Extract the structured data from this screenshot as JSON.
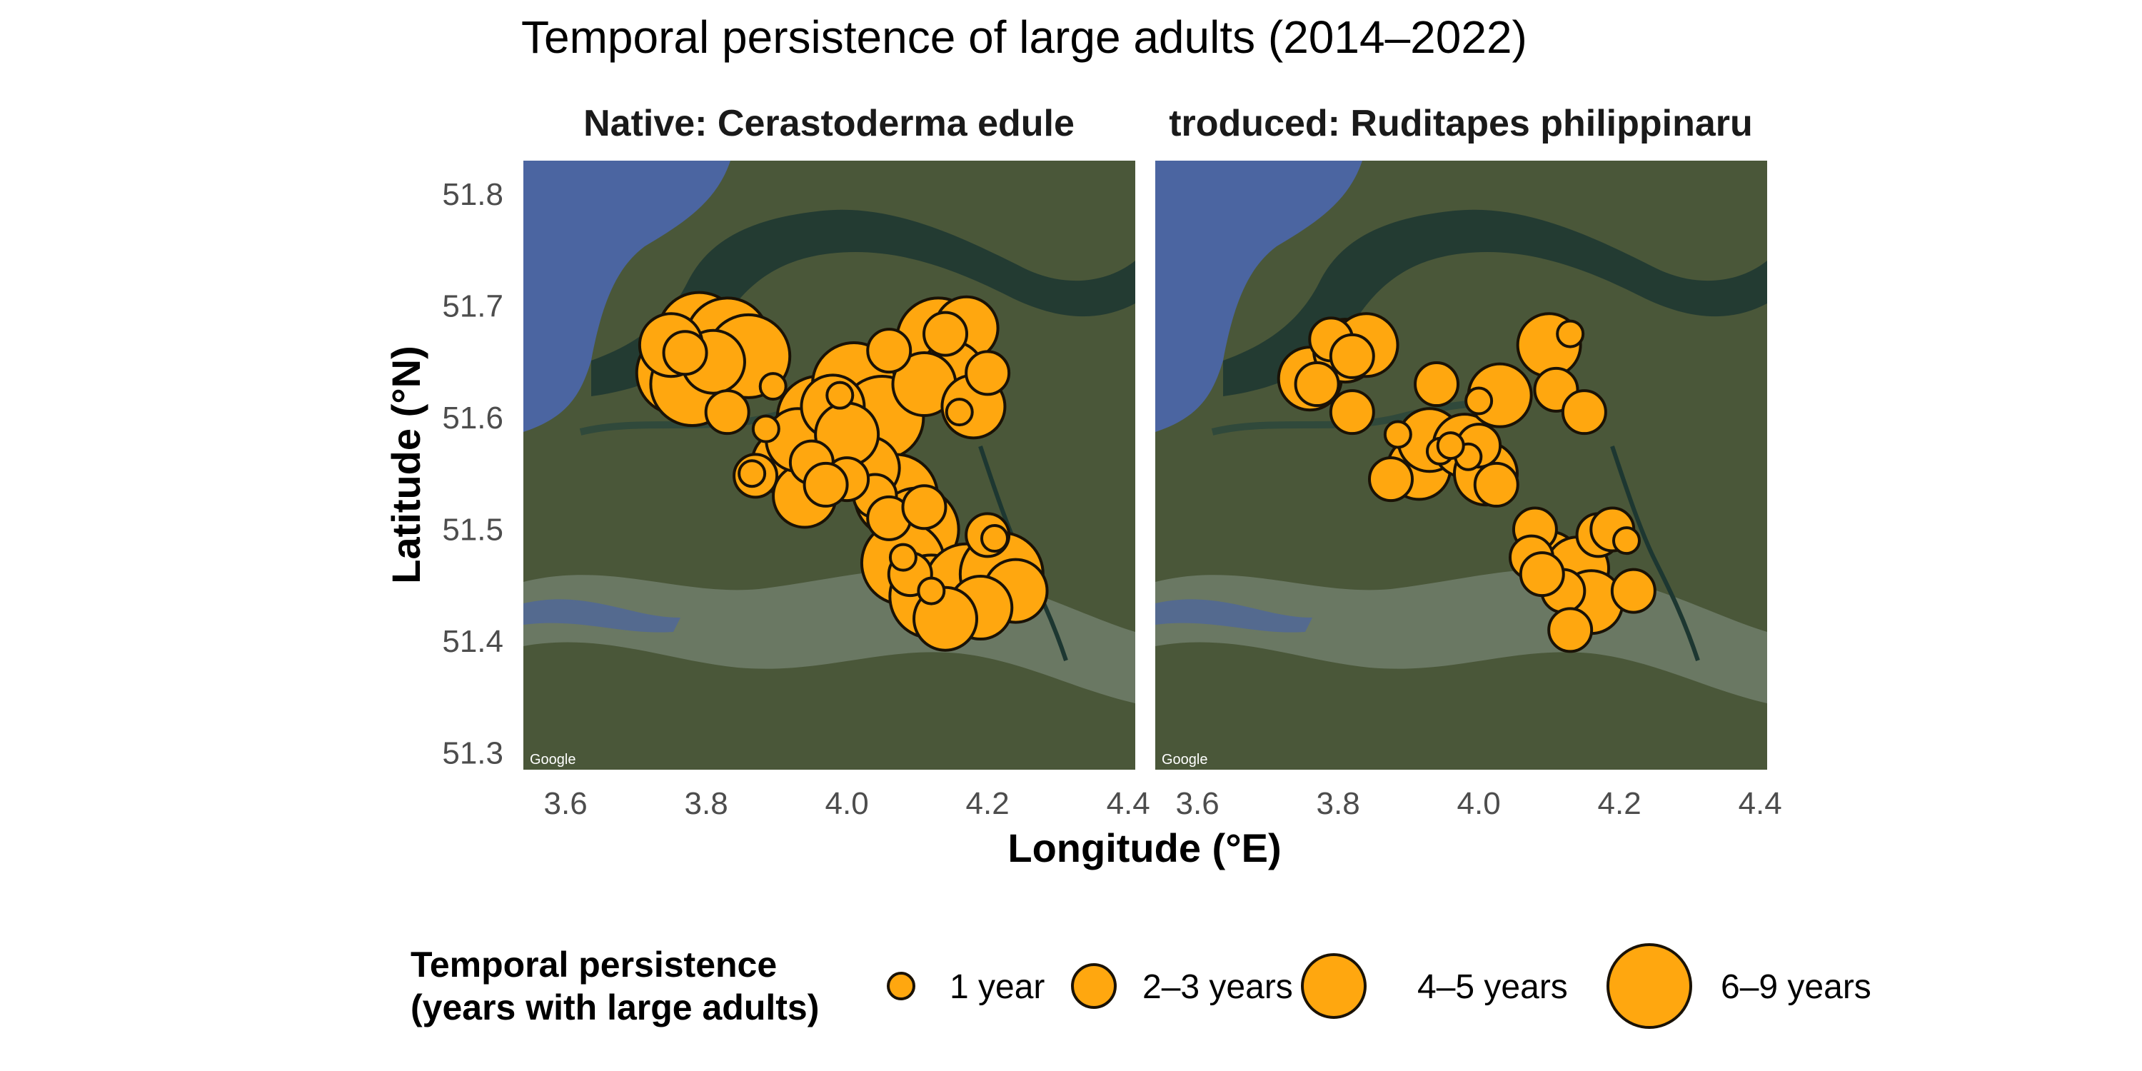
{
  "chart_data": {
    "type": "scatter",
    "title": "Temporal persistence of large adults (2014–2022)",
    "xlabel": "Longitude (°E)",
    "ylabel": "Latitude (°N)",
    "xlim": [
      3.54,
      4.41
    ],
    "ylim": [
      51.285,
      51.83
    ],
    "x_ticks": [
      "3.6",
      "3.8",
      "4.0",
      "4.2",
      "4.4"
    ],
    "y_ticks": [
      "51.3",
      "51.4",
      "51.5",
      "51.6",
      "51.7",
      "51.8"
    ],
    "basemap_credit": "Google",
    "colors": {
      "fill": "#FFA70F",
      "stroke": "#1a1206",
      "sea": "#4f6aa8",
      "land": "#4e5b3c",
      "water_dark": "#1f3a34",
      "estuary": "#6f7d68"
    },
    "legend": {
      "title_lines": [
        "Temporal persistence",
        "(years with large adults)"
      ],
      "position": "bottom",
      "items": [
        {
          "label": "1 year",
          "level": 1
        },
        {
          "label": "2–3 years",
          "level": 2
        },
        {
          "label": "4–5 years",
          "level": 3
        },
        {
          "label": "6–9 years",
          "level": 4
        }
      ]
    },
    "panels": [
      {
        "strip": "Native: Cerastoderma edule",
        "points": [
          {
            "lon": 3.79,
            "lat": 51.675,
            "level": 4
          },
          {
            "lon": 3.83,
            "lat": 51.67,
            "level": 4
          },
          {
            "lon": 3.76,
            "lat": 51.64,
            "level": 4
          },
          {
            "lon": 3.81,
            "lat": 51.65,
            "level": 3
          },
          {
            "lon": 3.78,
            "lat": 51.63,
            "level": 4
          },
          {
            "lon": 3.86,
            "lat": 51.655,
            "level": 4
          },
          {
            "lon": 3.75,
            "lat": 51.665,
            "level": 3
          },
          {
            "lon": 3.77,
            "lat": 51.658,
            "level": 2
          },
          {
            "lon": 3.83,
            "lat": 51.605,
            "level": 2
          },
          {
            "lon": 3.895,
            "lat": 51.628,
            "level": 1
          },
          {
            "lon": 3.885,
            "lat": 51.59,
            "level": 1
          },
          {
            "lon": 3.87,
            "lat": 51.548,
            "level": 2
          },
          {
            "lon": 3.865,
            "lat": 51.55,
            "level": 1
          },
          {
            "lon": 3.91,
            "lat": 51.56,
            "level": 3
          },
          {
            "lon": 3.94,
            "lat": 51.53,
            "level": 3
          },
          {
            "lon": 3.93,
            "lat": 51.58,
            "level": 3
          },
          {
            "lon": 3.96,
            "lat": 51.6,
            "level": 4
          },
          {
            "lon": 3.99,
            "lat": 51.575,
            "level": 4
          },
          {
            "lon": 3.98,
            "lat": 51.61,
            "level": 3
          },
          {
            "lon": 4.01,
            "lat": 51.63,
            "level": 4
          },
          {
            "lon": 4.05,
            "lat": 51.6,
            "level": 4
          },
          {
            "lon": 4.03,
            "lat": 51.555,
            "level": 3
          },
          {
            "lon": 4.0,
            "lat": 51.585,
            "level": 3
          },
          {
            "lon": 3.95,
            "lat": 51.56,
            "level": 2
          },
          {
            "lon": 3.99,
            "lat": 51.62,
            "level": 1
          },
          {
            "lon": 4.07,
            "lat": 51.53,
            "level": 4
          },
          {
            "lon": 4.1,
            "lat": 51.5,
            "level": 4
          },
          {
            "lon": 4.08,
            "lat": 51.47,
            "level": 4
          },
          {
            "lon": 4.12,
            "lat": 51.44,
            "level": 4
          },
          {
            "lon": 4.17,
            "lat": 51.45,
            "level": 4
          },
          {
            "lon": 4.22,
            "lat": 51.46,
            "level": 4
          },
          {
            "lon": 4.24,
            "lat": 51.445,
            "level": 3
          },
          {
            "lon": 4.19,
            "lat": 51.43,
            "level": 3
          },
          {
            "lon": 4.14,
            "lat": 51.42,
            "level": 3
          },
          {
            "lon": 4.09,
            "lat": 51.46,
            "level": 2
          },
          {
            "lon": 4.08,
            "lat": 51.475,
            "level": 1
          },
          {
            "lon": 4.12,
            "lat": 51.445,
            "level": 1
          },
          {
            "lon": 4.2,
            "lat": 51.495,
            "level": 2
          },
          {
            "lon": 4.21,
            "lat": 51.492,
            "level": 1
          },
          {
            "lon": 4.13,
            "lat": 51.67,
            "level": 4
          },
          {
            "lon": 4.17,
            "lat": 51.68,
            "level": 3
          },
          {
            "lon": 4.15,
            "lat": 51.64,
            "level": 3
          },
          {
            "lon": 4.11,
            "lat": 51.63,
            "level": 3
          },
          {
            "lon": 4.18,
            "lat": 51.61,
            "level": 3
          },
          {
            "lon": 4.2,
            "lat": 51.64,
            "level": 2
          },
          {
            "lon": 4.14,
            "lat": 51.675,
            "level": 2
          },
          {
            "lon": 4.16,
            "lat": 51.605,
            "level": 1
          },
          {
            "lon": 4.06,
            "lat": 51.66,
            "level": 2
          },
          {
            "lon": 4.04,
            "lat": 51.53,
            "level": 2
          },
          {
            "lon": 4.06,
            "lat": 51.51,
            "level": 2
          },
          {
            "lon": 4.11,
            "lat": 51.52,
            "level": 2
          },
          {
            "lon": 4.0,
            "lat": 51.545,
            "level": 2
          },
          {
            "lon": 3.97,
            "lat": 51.54,
            "level": 2
          }
        ]
      },
      {
        "strip": "troduced: Ruditapes philippinaru",
        "points": [
          {
            "lon": 3.76,
            "lat": 51.635,
            "level": 3
          },
          {
            "lon": 3.77,
            "lat": 51.63,
            "level": 2
          },
          {
            "lon": 3.79,
            "lat": 51.67,
            "level": 2
          },
          {
            "lon": 3.81,
            "lat": 51.66,
            "level": 3
          },
          {
            "lon": 3.84,
            "lat": 51.665,
            "level": 3
          },
          {
            "lon": 3.82,
            "lat": 51.655,
            "level": 2
          },
          {
            "lon": 3.82,
            "lat": 51.605,
            "level": 2
          },
          {
            "lon": 3.885,
            "lat": 51.585,
            "level": 1
          },
          {
            "lon": 3.875,
            "lat": 51.545,
            "level": 2
          },
          {
            "lon": 3.915,
            "lat": 51.555,
            "level": 3
          },
          {
            "lon": 3.93,
            "lat": 51.58,
            "level": 3
          },
          {
            "lon": 3.94,
            "lat": 51.63,
            "level": 2
          },
          {
            "lon": 3.98,
            "lat": 51.575,
            "level": 3
          },
          {
            "lon": 4.01,
            "lat": 51.55,
            "level": 3
          },
          {
            "lon": 4.0,
            "lat": 51.575,
            "level": 2
          },
          {
            "lon": 3.985,
            "lat": 51.565,
            "level": 1
          },
          {
            "lon": 4.025,
            "lat": 51.54,
            "level": 2
          },
          {
            "lon": 3.945,
            "lat": 51.57,
            "level": 1
          },
          {
            "lon": 3.96,
            "lat": 51.575,
            "level": 1
          },
          {
            "lon": 4.03,
            "lat": 51.62,
            "level": 3
          },
          {
            "lon": 4.0,
            "lat": 51.615,
            "level": 1
          },
          {
            "lon": 4.1,
            "lat": 51.665,
            "level": 3
          },
          {
            "lon": 4.13,
            "lat": 51.675,
            "level": 1
          },
          {
            "lon": 4.11,
            "lat": 51.625,
            "level": 2
          },
          {
            "lon": 4.15,
            "lat": 51.605,
            "level": 2
          },
          {
            "lon": 4.08,
            "lat": 51.5,
            "level": 2
          },
          {
            "lon": 4.075,
            "lat": 51.475,
            "level": 2
          },
          {
            "lon": 4.1,
            "lat": 51.47,
            "level": 3
          },
          {
            "lon": 4.14,
            "lat": 51.465,
            "level": 3
          },
          {
            "lon": 4.16,
            "lat": 51.435,
            "level": 3
          },
          {
            "lon": 4.12,
            "lat": 51.445,
            "level": 2
          },
          {
            "lon": 4.17,
            "lat": 51.495,
            "level": 2
          },
          {
            "lon": 4.19,
            "lat": 51.5,
            "level": 2
          },
          {
            "lon": 4.21,
            "lat": 51.49,
            "level": 1
          },
          {
            "lon": 4.22,
            "lat": 51.445,
            "level": 2
          },
          {
            "lon": 4.09,
            "lat": 51.46,
            "level": 2
          },
          {
            "lon": 4.13,
            "lat": 51.41,
            "level": 2
          }
        ]
      }
    ]
  }
}
